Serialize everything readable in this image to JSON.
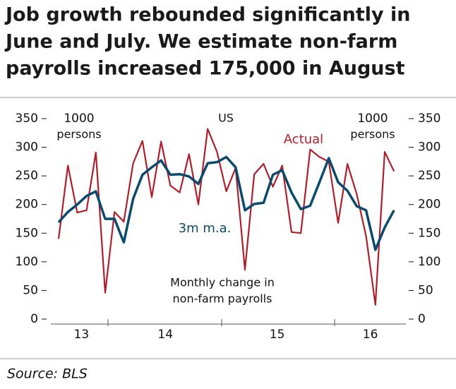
{
  "chart_data": {
    "type": "line",
    "title": [
      "Job growth rebounded significantly in",
      "June and July. We estimate non-farm",
      "payrolls increased 175,000 in August"
    ],
    "categories": [
      null,
      null,
      "13",
      null,
      null,
      null,
      null,
      null,
      null,
      null,
      null,
      "14",
      null,
      null,
      null,
      null,
      null,
      null,
      null,
      null,
      null,
      null,
      null,
      "15",
      null,
      null,
      null,
      null,
      null,
      null,
      null,
      null,
      null,
      "16",
      null,
      null,
      null
    ],
    "series": [
      {
        "name": "Actual",
        "color": "#b01e2a",
        "values": [
          140,
          268,
          186,
          190,
          291,
          46,
          187,
          170,
          272,
          311,
          213,
          310,
          233,
          221,
          288,
          200,
          332,
          292,
          223,
          264,
          86,
          253,
          271,
          231,
          268,
          152,
          150,
          296,
          283,
          275,
          168,
          271,
          218,
          145,
          25,
          292,
          258
        ]
      },
      {
        "name": "3m m.a.",
        "color": "#0b4a6f",
        "values": [
          169,
          187,
          200,
          215,
          223,
          175,
          175,
          134,
          210,
          252,
          265,
          277,
          252,
          253,
          249,
          236,
          272,
          274,
          283,
          265,
          190,
          201,
          203,
          252,
          260,
          221,
          192,
          198,
          239,
          281,
          239,
          224,
          197,
          190,
          121,
          160,
          190
        ]
      }
    ],
    "ylim": [
      0,
      350
    ],
    "yticks": [
      0,
      50,
      100,
      150,
      200,
      250,
      300,
      350
    ],
    "y2lim": [
      0,
      350
    ],
    "y2ticks": [
      0,
      50,
      100,
      150,
      200,
      250,
      300,
      350
    ],
    "y_label": [
      "1000",
      "persons"
    ],
    "y2_label": [
      "1000",
      "persons"
    ],
    "annotations": [
      "US",
      "Monthly change in",
      "non-farm payrolls"
    ],
    "source": "Source: BLS"
  }
}
